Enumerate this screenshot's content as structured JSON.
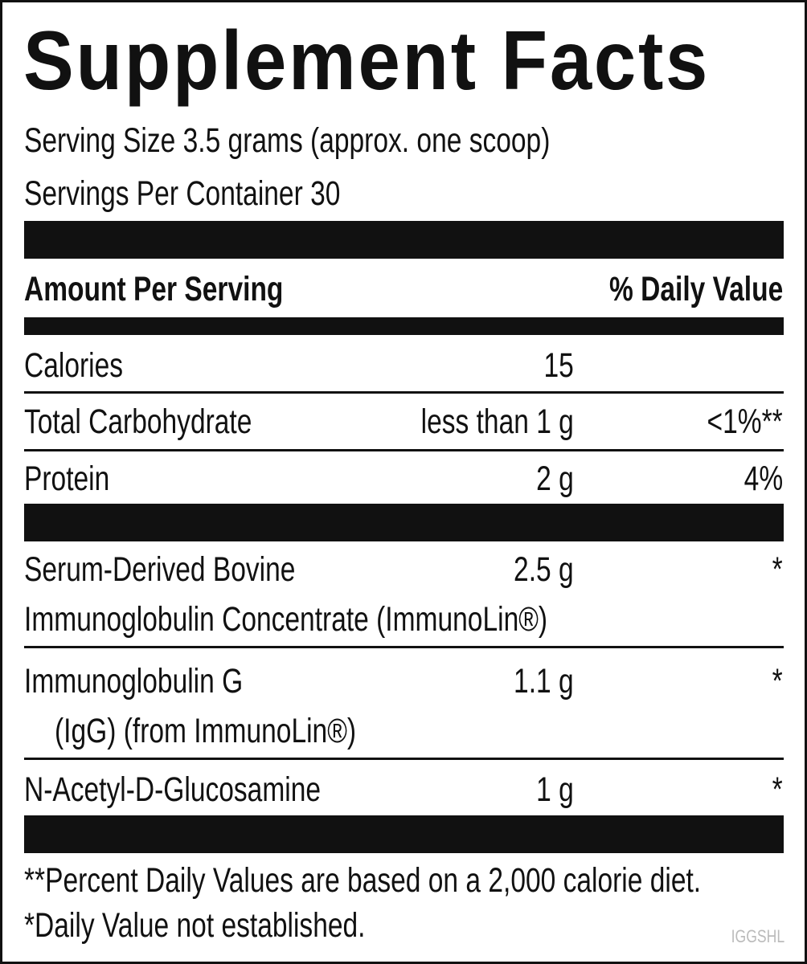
{
  "header": {
    "title": "Supplement Facts"
  },
  "serving": {
    "size": "Serving Size 3.5 grams (approx. one scoop)",
    "per_container": "Servings Per Container 30"
  },
  "columns": {
    "amount": "Amount Per Serving",
    "daily_value": "% Daily Value"
  },
  "rows": [
    {
      "name": [
        "Calories"
      ],
      "amount": "15"
    },
    {
      "name": [
        "Total Carbohydrate"
      ],
      "amount": "less than 1 g",
      "daily_value": "<1%**"
    },
    {
      "name": [
        "Protein"
      ],
      "amount": "2 g",
      "daily_value": "4%"
    },
    {
      "name": [
        "Serum-Derived Bovine",
        "Immunoglobulin Concentrate (ImmunoLin®)"
      ],
      "amount": "2.5 g",
      "daily_value": "*"
    },
    {
      "name": [
        "Immunoglobulin G",
        "(IgG) (from ImmunoLin®)"
      ],
      "amount": "1.1 g",
      "daily_value": "*"
    },
    {
      "name": [
        "N-Acetyl-D-Glucosamine"
      ],
      "amount": "1 g",
      "daily_value": "*"
    }
  ],
  "footnotes": [
    "**Percent Daily Values are based on a 2,000 calorie diet.",
    "*Daily Value not established."
  ],
  "code": "IGGSHL"
}
